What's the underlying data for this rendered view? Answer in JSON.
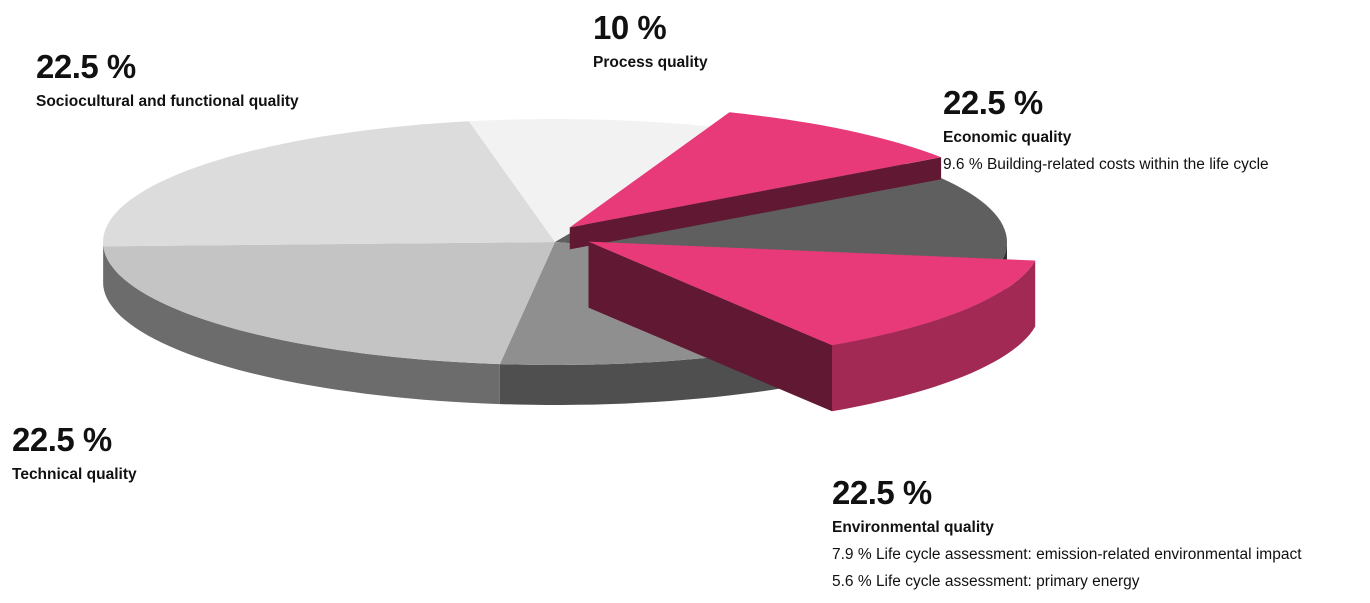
{
  "chart_data": {
    "type": "pie",
    "categories": [
      "Process quality",
      "Economic quality",
      "Environmental quality",
      "Technical quality",
      "Sociocultural and functional quality"
    ],
    "values": [
      10,
      22.5,
      22.5,
      22.5,
      22.5
    ],
    "value_labels": [
      "10 %",
      "22.5 %",
      "22.5 %",
      "22.5 %",
      "22.5 %"
    ],
    "highlighted": [
      {
        "label": "9.6 % Building-related costs within the life cycle",
        "value": 9.6,
        "parent": "Economic quality"
      },
      {
        "label": "7.9 % Life cycle assessment: emission-related environmental impact",
        "value": 7.9,
        "parent": "Environmental quality"
      },
      {
        "label": "5.6 % Life cycle assessment: primary energy",
        "value": 5.6,
        "parent": "Environmental quality"
      }
    ],
    "colors": {
      "highlight": "#e83a78",
      "process": "#f2f2f2",
      "economic": "#5f5f5f",
      "environmental": "#8f8f8f",
      "technical": "#c4c4c4",
      "sociocultural": "#dcdcdc"
    }
  }
}
